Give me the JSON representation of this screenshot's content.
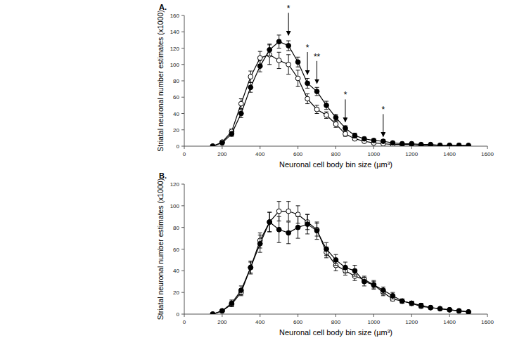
{
  "chart_data": [
    {
      "type": "line",
      "title": "A.",
      "x_label": "Neuronal cell body bin size (µm³)",
      "y_label": "Striatal neuronal number estimates (x1000)",
      "x": [
        150,
        200,
        250,
        300,
        350,
        400,
        450,
        500,
        550,
        600,
        650,
        700,
        750,
        800,
        850,
        900,
        950,
        1000,
        1050,
        1100,
        1150,
        1200,
        1250,
        1300,
        1350,
        1400,
        1450,
        1500
      ],
      "series": [
        {
          "color": "#000000",
          "marker": "open circle",
          "values": [
            0,
            5,
            18,
            52,
            85,
            108,
            112,
            105,
            100,
            83,
            58,
            45,
            38,
            27,
            15,
            9,
            6,
            4,
            3,
            2,
            2,
            2,
            1,
            1,
            1,
            1,
            1,
            0
          ],
          "errors": [
            0,
            1,
            3,
            6,
            7,
            8,
            12,
            10,
            12,
            10,
            6,
            5,
            4,
            4,
            3,
            2,
            2,
            1,
            1,
            1,
            1,
            1,
            1,
            1,
            1,
            1,
            1,
            0
          ]
        },
        {
          "color": "#000000",
          "marker": "filled circle",
          "values": [
            0,
            4,
            15,
            40,
            72,
            98,
            118,
            128,
            123,
            103,
            77,
            67,
            50,
            35,
            22,
            13,
            9,
            7,
            6,
            4,
            3,
            3,
            2,
            2,
            1,
            1,
            1,
            1
          ],
          "errors": [
            0,
            1,
            3,
            5,
            6,
            7,
            7,
            8,
            6,
            6,
            6,
            5,
            5,
            4,
            3,
            3,
            2,
            2,
            2,
            1,
            1,
            1,
            1,
            1,
            1,
            1,
            1,
            1
          ]
        }
      ],
      "annotations": [
        {
          "text": "*",
          "x": 550,
          "y": 134
        },
        {
          "text": "*",
          "x": 650,
          "y": 86
        },
        {
          "text": "**",
          "x": 700,
          "y": 75
        },
        {
          "text": "*",
          "x": 850,
          "y": 28
        },
        {
          "text": "*",
          "x": 1050,
          "y": 10
        }
      ],
      "xlim": [
        0,
        1600
      ],
      "xticks": [
        0,
        200,
        400,
        600,
        800,
        1000,
        1200,
        1400,
        1600
      ],
      "ylim": [
        0,
        160
      ],
      "yticks": [
        0,
        20,
        40,
        60,
        80,
        100,
        120,
        140,
        160
      ]
    },
    {
      "type": "line",
      "title": "B.",
      "x_label": "Neuronal cell body bin size (µm³)",
      "y_label": "Striatal neuronal number estimates (x1000)",
      "x": [
        150,
        200,
        250,
        300,
        350,
        400,
        450,
        500,
        550,
        600,
        650,
        700,
        750,
        800,
        850,
        900,
        950,
        1000,
        1050,
        1100,
        1150,
        1200,
        1250,
        1300,
        1350,
        1400,
        1450,
        1500
      ],
      "series": [
        {
          "color": "#000000",
          "marker": "open circle",
          "values": [
            0,
            3,
            9,
            20,
            43,
            68,
            85,
            95,
            95,
            92,
            85,
            78,
            57,
            45,
            40,
            35,
            32,
            27,
            20,
            14,
            12,
            10,
            7,
            6,
            5,
            4,
            3,
            2
          ],
          "errors": [
            0,
            1,
            2,
            3,
            5,
            7,
            9,
            9,
            9,
            8,
            7,
            6,
            5,
            5,
            4,
            4,
            3,
            3,
            3,
            2,
            2,
            2,
            1,
            1,
            1,
            1,
            1,
            1
          ]
        },
        {
          "color": "#000000",
          "marker": "filled circle",
          "values": [
            0,
            3,
            10,
            22,
            43,
            65,
            85,
            78,
            75,
            80,
            83,
            77,
            60,
            50,
            43,
            40,
            30,
            27,
            22,
            17,
            12,
            10,
            8,
            6,
            5,
            4,
            3,
            2
          ],
          "errors": [
            0,
            1,
            3,
            4,
            6,
            8,
            9,
            12,
            10,
            10,
            9,
            8,
            6,
            5,
            5,
            5,
            4,
            4,
            3,
            3,
            2,
            2,
            2,
            1,
            1,
            1,
            1,
            1
          ]
        }
      ],
      "xlim": [
        0,
        1600
      ],
      "xticks": [
        0,
        200,
        400,
        600,
        800,
        1000,
        1200,
        1400,
        1600
      ],
      "ylim": [
        0,
        120
      ],
      "yticks": [
        0,
        20,
        40,
        60,
        80,
        100,
        120
      ]
    }
  ]
}
